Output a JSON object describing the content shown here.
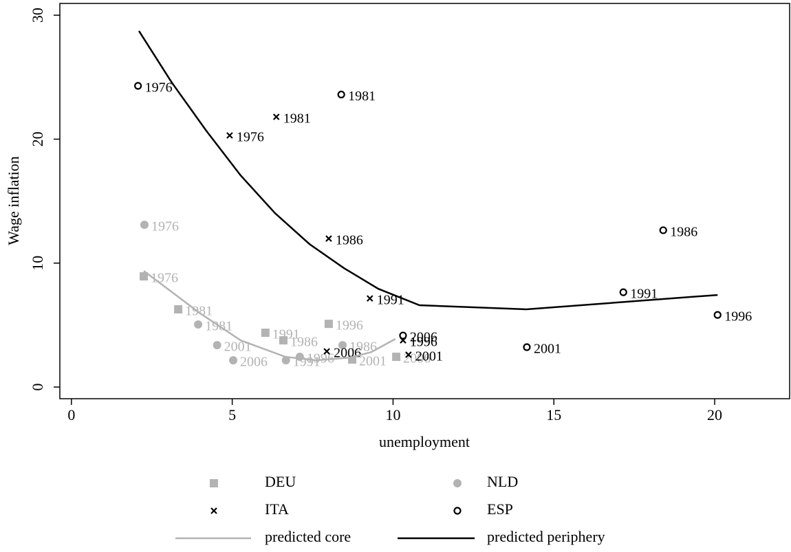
{
  "chart_data": {
    "type": "scatter",
    "x_label": "unemployment",
    "y_label": "Wage inflation",
    "xlim": [
      -0.36,
      22.33
    ],
    "ylim": [
      -0.94,
      30.95
    ],
    "xticks": [
      0,
      5,
      10,
      15,
      20
    ],
    "yticks": [
      0,
      10,
      20,
      30
    ],
    "grid": false,
    "legend": "bottom",
    "series": [
      {
        "name": "DEU",
        "color": "#b3b3b3",
        "marker": "square",
        "x": [
          2.25,
          3.32,
          6.59,
          6.03,
          8.0,
          8.73,
          10.1
        ],
        "values": [
          8.93,
          6.27,
          3.77,
          4.38,
          5.1,
          2.22,
          2.44
        ],
        "point_labels": [
          "1976",
          "1981",
          "1986",
          "1991",
          "1996",
          "2001",
          "2006"
        ]
      },
      {
        "name": "NLD",
        "color": "#b3b3b3",
        "marker": "circle",
        "x": [
          2.27,
          3.94,
          8.43,
          6.67,
          7.1,
          4.53,
          5.03
        ],
        "values": [
          13.09,
          5.05,
          3.38,
          2.16,
          2.44,
          3.38,
          2.16
        ],
        "point_labels": [
          "1976",
          "1981",
          "1986",
          "1991",
          "1996",
          "2001",
          "2006"
        ]
      },
      {
        "name": "ITA",
        "color": "#000000",
        "marker": "x",
        "x": [
          4.92,
          6.37,
          8.0,
          9.28,
          10.31,
          10.48,
          7.94
        ],
        "values": [
          20.3,
          21.8,
          11.98,
          7.15,
          3.77,
          2.61,
          2.88
        ],
        "point_labels": [
          "1976",
          "1981",
          "1986",
          "1991",
          "1996",
          "2001",
          "2006"
        ]
      },
      {
        "name": "ESP",
        "color": "#000000",
        "marker": "hollow-circle",
        "x": [
          2.07,
          8.39,
          18.4,
          17.16,
          20.09,
          14.16,
          10.31
        ],
        "values": [
          24.3,
          23.6,
          12.65,
          7.65,
          5.82,
          3.22,
          4.16
        ],
        "point_labels": [
          "1976",
          "1981",
          "1986",
          "1991",
          "1996",
          "2001",
          "2006"
        ]
      },
      {
        "name": "predicted core",
        "color": "#b3b3b3",
        "marker": "line",
        "x": [
          2.25,
          3.98,
          5.26,
          6.65,
          7.61,
          8.68,
          9.33,
          10.07
        ],
        "values": [
          9.37,
          5.99,
          3.77,
          2.44,
          2.16,
          2.38,
          2.83,
          3.88
        ]
      },
      {
        "name": "predicted periphery",
        "color": "#000000",
        "marker": "line",
        "x": [
          2.1,
          3.12,
          4.19,
          5.26,
          6.33,
          7.4,
          8.47,
          9.54,
          10.82,
          14.14,
          20.09
        ],
        "values": [
          28.73,
          24.57,
          20.69,
          17.08,
          14.03,
          11.54,
          9.6,
          7.93,
          6.6,
          6.27,
          7.43
        ]
      }
    ]
  }
}
